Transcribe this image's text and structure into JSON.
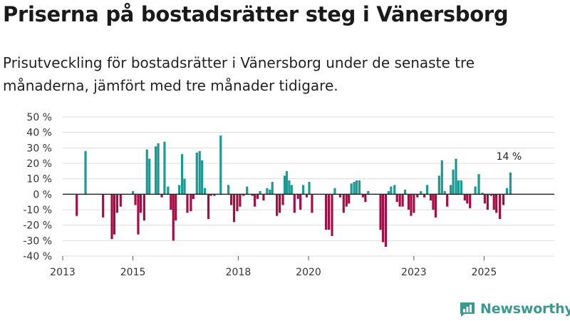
{
  "header": {
    "title": "Priserna på bostadsrätter steg i Vänersborg",
    "subtitle": "Prisutveckling för bostadsrätter i Vänersborg under de senaste tre månaderna, jämfört med tre månader tidigare."
  },
  "brand": {
    "name": "Newsworthy",
    "color": "#3a9a8f"
  },
  "colors": {
    "positive": "#1a9a93",
    "negative": "#a50e45",
    "grid": "#dcdcdc",
    "zero_line": "#222222"
  },
  "chart_data": {
    "type": "bar",
    "title": "Priserna på bostadsrätter steg i Vänersborg",
    "xlabel": "",
    "ylabel": "",
    "unit": "%",
    "ylim": [
      -40,
      50
    ],
    "yticks": [
      -40,
      -30,
      -20,
      -10,
      0,
      10,
      20,
      30,
      40,
      50
    ],
    "ytick_labels": [
      "-40 %",
      "-30 %",
      "-20 %",
      "-10 %",
      "0 %",
      "10 %",
      "20 %",
      "30 %",
      "40 %",
      "50 %"
    ],
    "xlim": [
      2013,
      2027
    ],
    "xticks": [
      2013,
      2015,
      2018,
      2020,
      2023,
      2025
    ],
    "xtick_labels": [
      "2013",
      "2015",
      "2018",
      "2020",
      "2023",
      "2025"
    ],
    "annotation": {
      "label": "14 %",
      "value": 14,
      "x": 2025.75
    },
    "series": [
      {
        "name": "Prisutveckling",
        "points": [
          {
            "x": 2013.4,
            "v": -14
          },
          {
            "x": 2013.65,
            "v": 28
          },
          {
            "x": 2014.15,
            "v": -15
          },
          {
            "x": 2014.4,
            "v": -29
          },
          {
            "x": 2014.47,
            "v": -26
          },
          {
            "x": 2014.55,
            "v": -12
          },
          {
            "x": 2014.65,
            "v": -8
          },
          {
            "x": 2015.0,
            "v": 2
          },
          {
            "x": 2015.07,
            "v": -7
          },
          {
            "x": 2015.15,
            "v": -26
          },
          {
            "x": 2015.22,
            "v": -12
          },
          {
            "x": 2015.32,
            "v": -17
          },
          {
            "x": 2015.4,
            "v": 29
          },
          {
            "x": 2015.47,
            "v": 23
          },
          {
            "x": 2015.65,
            "v": 31
          },
          {
            "x": 2015.72,
            "v": 33
          },
          {
            "x": 2015.82,
            "v": -2
          },
          {
            "x": 2015.9,
            "v": 34
          },
          {
            "x": 2016.0,
            "v": 5
          },
          {
            "x": 2016.08,
            "v": -10
          },
          {
            "x": 2016.15,
            "v": -30
          },
          {
            "x": 2016.22,
            "v": -17
          },
          {
            "x": 2016.32,
            "v": 6
          },
          {
            "x": 2016.4,
            "v": 26
          },
          {
            "x": 2016.47,
            "v": 10
          },
          {
            "x": 2016.55,
            "v": -12
          },
          {
            "x": 2016.65,
            "v": -11
          },
          {
            "x": 2016.72,
            "v": -3
          },
          {
            "x": 2016.82,
            "v": 27
          },
          {
            "x": 2016.9,
            "v": 28
          },
          {
            "x": 2016.97,
            "v": 22
          },
          {
            "x": 2017.05,
            "v": 4
          },
          {
            "x": 2017.15,
            "v": -16
          },
          {
            "x": 2017.22,
            "v": -1
          },
          {
            "x": 2017.32,
            "v": -1
          },
          {
            "x": 2017.5,
            "v": 38
          },
          {
            "x": 2017.72,
            "v": 6
          },
          {
            "x": 2017.8,
            "v": -7
          },
          {
            "x": 2017.88,
            "v": -18
          },
          {
            "x": 2017.97,
            "v": -11
          },
          {
            "x": 2018.05,
            "v": -8
          },
          {
            "x": 2018.15,
            "v": -1
          },
          {
            "x": 2018.25,
            "v": 5
          },
          {
            "x": 2018.4,
            "v": -1
          },
          {
            "x": 2018.47,
            "v": -8
          },
          {
            "x": 2018.55,
            "v": -3
          },
          {
            "x": 2018.62,
            "v": 2
          },
          {
            "x": 2018.72,
            "v": -4
          },
          {
            "x": 2018.82,
            "v": 4
          },
          {
            "x": 2018.9,
            "v": 3
          },
          {
            "x": 2018.97,
            "v": 8
          },
          {
            "x": 2019.1,
            "v": -14
          },
          {
            "x": 2019.18,
            "v": -12
          },
          {
            "x": 2019.27,
            "v": -7
          },
          {
            "x": 2019.32,
            "v": 12
          },
          {
            "x": 2019.38,
            "v": 15
          },
          {
            "x": 2019.45,
            "v": 9
          },
          {
            "x": 2019.52,
            "v": 6
          },
          {
            "x": 2019.6,
            "v": -12
          },
          {
            "x": 2019.7,
            "v": -3
          },
          {
            "x": 2019.77,
            "v": -10
          },
          {
            "x": 2019.85,
            "v": 6
          },
          {
            "x": 2019.95,
            "v": -2
          },
          {
            "x": 2020.02,
            "v": 8
          },
          {
            "x": 2020.1,
            "v": -12
          },
          {
            "x": 2020.5,
            "v": -23
          },
          {
            "x": 2020.58,
            "v": -23
          },
          {
            "x": 2020.67,
            "v": -27
          },
          {
            "x": 2020.75,
            "v": 4
          },
          {
            "x": 2020.9,
            "v": -2
          },
          {
            "x": 2021.0,
            "v": -12
          },
          {
            "x": 2021.08,
            "v": -8
          },
          {
            "x": 2021.15,
            "v": -6
          },
          {
            "x": 2021.22,
            "v": 7
          },
          {
            "x": 2021.3,
            "v": 8
          },
          {
            "x": 2021.37,
            "v": 9
          },
          {
            "x": 2021.45,
            "v": 9
          },
          {
            "x": 2021.55,
            "v": -2
          },
          {
            "x": 2021.62,
            "v": -5
          },
          {
            "x": 2021.7,
            "v": 2
          },
          {
            "x": 2022.05,
            "v": -23
          },
          {
            "x": 2022.12,
            "v": -31
          },
          {
            "x": 2022.2,
            "v": -34
          },
          {
            "x": 2022.28,
            "v": 2
          },
          {
            "x": 2022.35,
            "v": 5
          },
          {
            "x": 2022.45,
            "v": 6
          },
          {
            "x": 2022.52,
            "v": -5
          },
          {
            "x": 2022.6,
            "v": -8
          },
          {
            "x": 2022.68,
            "v": -8
          },
          {
            "x": 2022.75,
            "v": 3
          },
          {
            "x": 2022.85,
            "v": -10
          },
          {
            "x": 2022.92,
            "v": -14
          },
          {
            "x": 2023.0,
            "v": -12
          },
          {
            "x": 2023.1,
            "v": -2
          },
          {
            "x": 2023.2,
            "v": 2
          },
          {
            "x": 2023.3,
            "v": -2
          },
          {
            "x": 2023.38,
            "v": 6
          },
          {
            "x": 2023.48,
            "v": -4
          },
          {
            "x": 2023.55,
            "v": -10
          },
          {
            "x": 2023.62,
            "v": -15
          },
          {
            "x": 2023.72,
            "v": 12
          },
          {
            "x": 2023.8,
            "v": 22
          },
          {
            "x": 2023.88,
            "v": 2
          },
          {
            "x": 2023.95,
            "v": -8
          },
          {
            "x": 2024.05,
            "v": 6
          },
          {
            "x": 2024.12,
            "v": 16
          },
          {
            "x": 2024.2,
            "v": 23
          },
          {
            "x": 2024.27,
            "v": 9
          },
          {
            "x": 2024.35,
            "v": 9
          },
          {
            "x": 2024.45,
            "v": -4
          },
          {
            "x": 2024.52,
            "v": -6
          },
          {
            "x": 2024.6,
            "v": -9
          },
          {
            "x": 2024.75,
            "v": 5
          },
          {
            "x": 2024.85,
            "v": 13
          },
          {
            "x": 2024.95,
            "v": 1
          },
          {
            "x": 2025.02,
            "v": -6
          },
          {
            "x": 2025.1,
            "v": -10
          },
          {
            "x": 2025.2,
            "v": -1
          },
          {
            "x": 2025.28,
            "v": -10
          },
          {
            "x": 2025.35,
            "v": -12
          },
          {
            "x": 2025.45,
            "v": -16
          },
          {
            "x": 2025.55,
            "v": -7
          },
          {
            "x": 2025.65,
            "v": 4
          },
          {
            "x": 2025.75,
            "v": 14
          }
        ]
      }
    ]
  }
}
